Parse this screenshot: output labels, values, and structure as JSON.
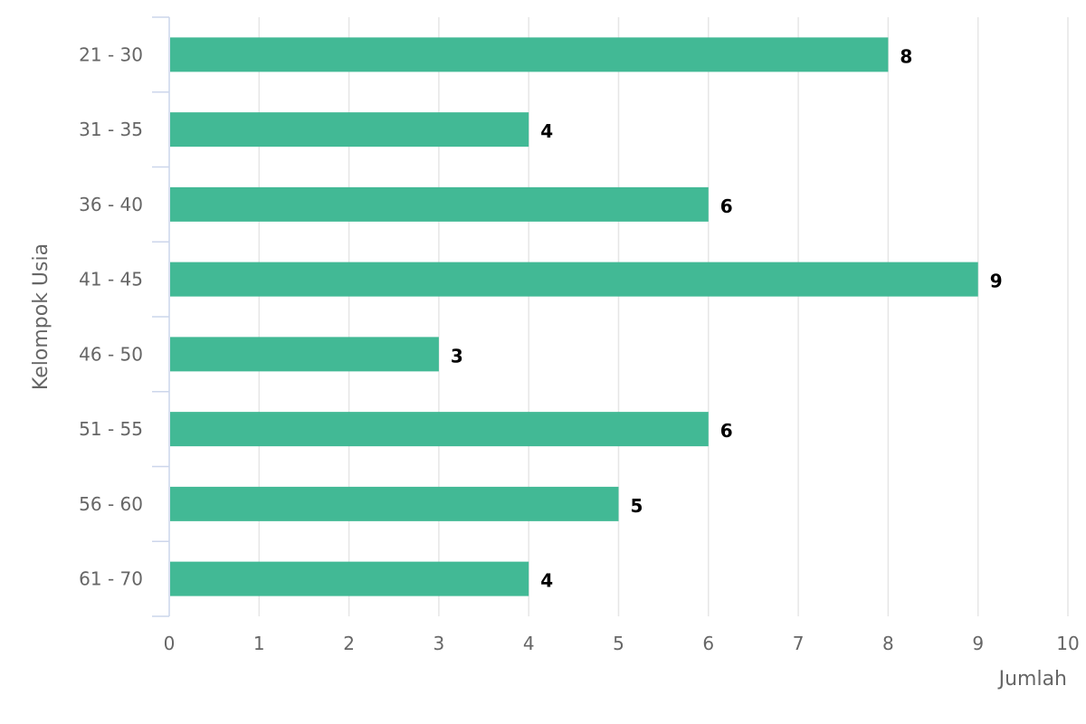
{
  "chart_data": {
    "type": "bar",
    "orientation": "horizontal",
    "categories": [
      "21 - 30",
      "31 - 35",
      "36 - 40",
      "41 - 45",
      "46 - 50",
      "51 - 55",
      "56 - 60",
      "61 - 70"
    ],
    "values": [
      8,
      4,
      6,
      9,
      3,
      6,
      5,
      4
    ],
    "xlabel": "Jumlah",
    "ylabel": "Kelompok Usia",
    "xlim": [
      0,
      10
    ],
    "xticks": [
      "0",
      "1",
      "2",
      "3",
      "4",
      "5",
      "6",
      "7",
      "8",
      "9",
      "10"
    ],
    "grid": true,
    "bar_color": "#42b995",
    "grid_color": "#e6e6e6",
    "axis_color": "#ccd6eb"
  }
}
